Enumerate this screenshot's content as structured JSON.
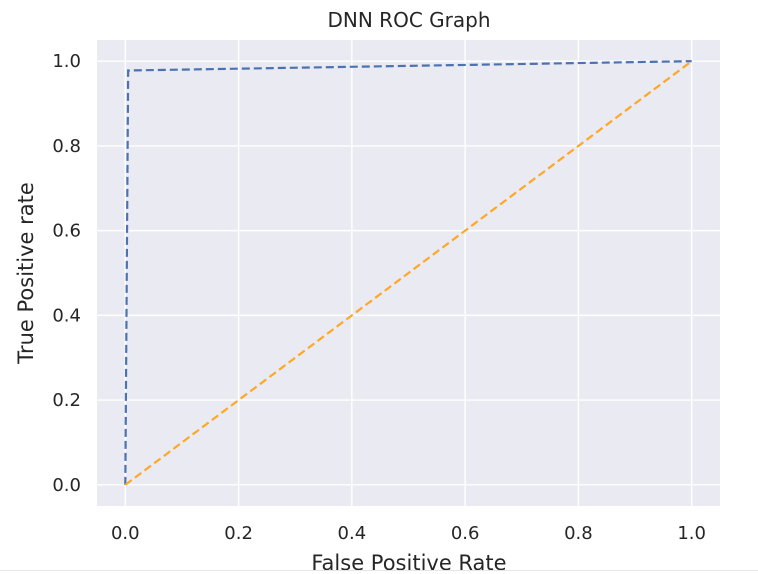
{
  "chart_data": {
    "type": "line",
    "title": "DNN ROC Graph",
    "xlabel": "False Positive Rate",
    "ylabel": "True Positive rate",
    "xlim": [
      -0.05,
      1.05
    ],
    "ylim": [
      -0.05,
      1.05
    ],
    "xticks": [
      0.0,
      0.2,
      0.4,
      0.6,
      0.8,
      1.0
    ],
    "yticks": [
      0.0,
      0.2,
      0.4,
      0.6,
      0.8,
      1.0
    ],
    "tick_labels_x": [
      "0.0",
      "0.2",
      "0.4",
      "0.6",
      "0.8",
      "1.0"
    ],
    "tick_labels_y": [
      "0.0",
      "0.2",
      "0.4",
      "0.6",
      "0.8",
      "1.0"
    ],
    "grid": true,
    "legend": "none",
    "background_color": "#eaeaf2",
    "grid_color": "#ffffff",
    "series": [
      {
        "x": [
          0.0,
          0.005,
          1.0
        ],
        "y": [
          0.0,
          0.978,
          1.0
        ],
        "color": "#4c72b0",
        "style": "dashed"
      },
      {
        "x": [
          0.0,
          1.0
        ],
        "y": [
          0.0,
          1.0
        ],
        "color": "#ffa726",
        "style": "dashed"
      }
    ]
  }
}
